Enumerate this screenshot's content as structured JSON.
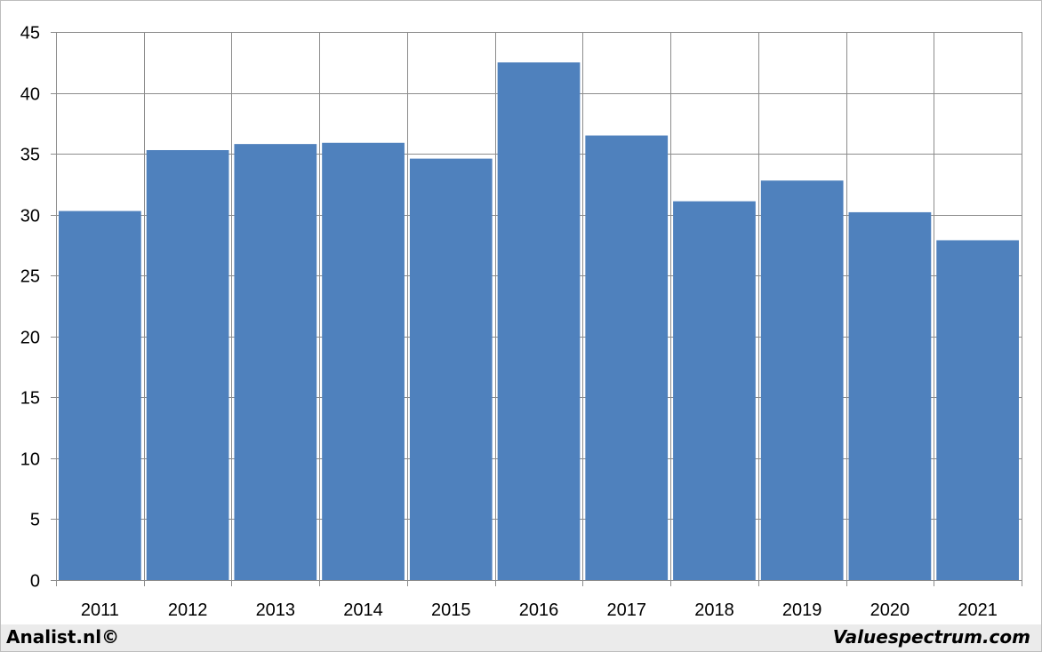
{
  "chart_data": {
    "type": "bar",
    "categories": [
      "2011",
      "2012",
      "2013",
      "2014",
      "2015",
      "2016",
      "2017",
      "2018",
      "2019",
      "2020",
      "2021"
    ],
    "values": [
      30.3,
      35.3,
      35.8,
      35.9,
      34.6,
      42.5,
      36.5,
      31.1,
      32.8,
      30.2,
      27.9
    ],
    "yticks": [
      0,
      5,
      10,
      15,
      20,
      25,
      30,
      35,
      40,
      45
    ],
    "ylim": [
      0,
      45
    ],
    "grid": true,
    "bar_color": "#4f81bd",
    "grid_color": "#8c8c8c",
    "title": "",
    "xlabel": "",
    "ylabel": ""
  },
  "footer": {
    "left": "Analist.nl©",
    "right": "Valuespectrum.com"
  }
}
